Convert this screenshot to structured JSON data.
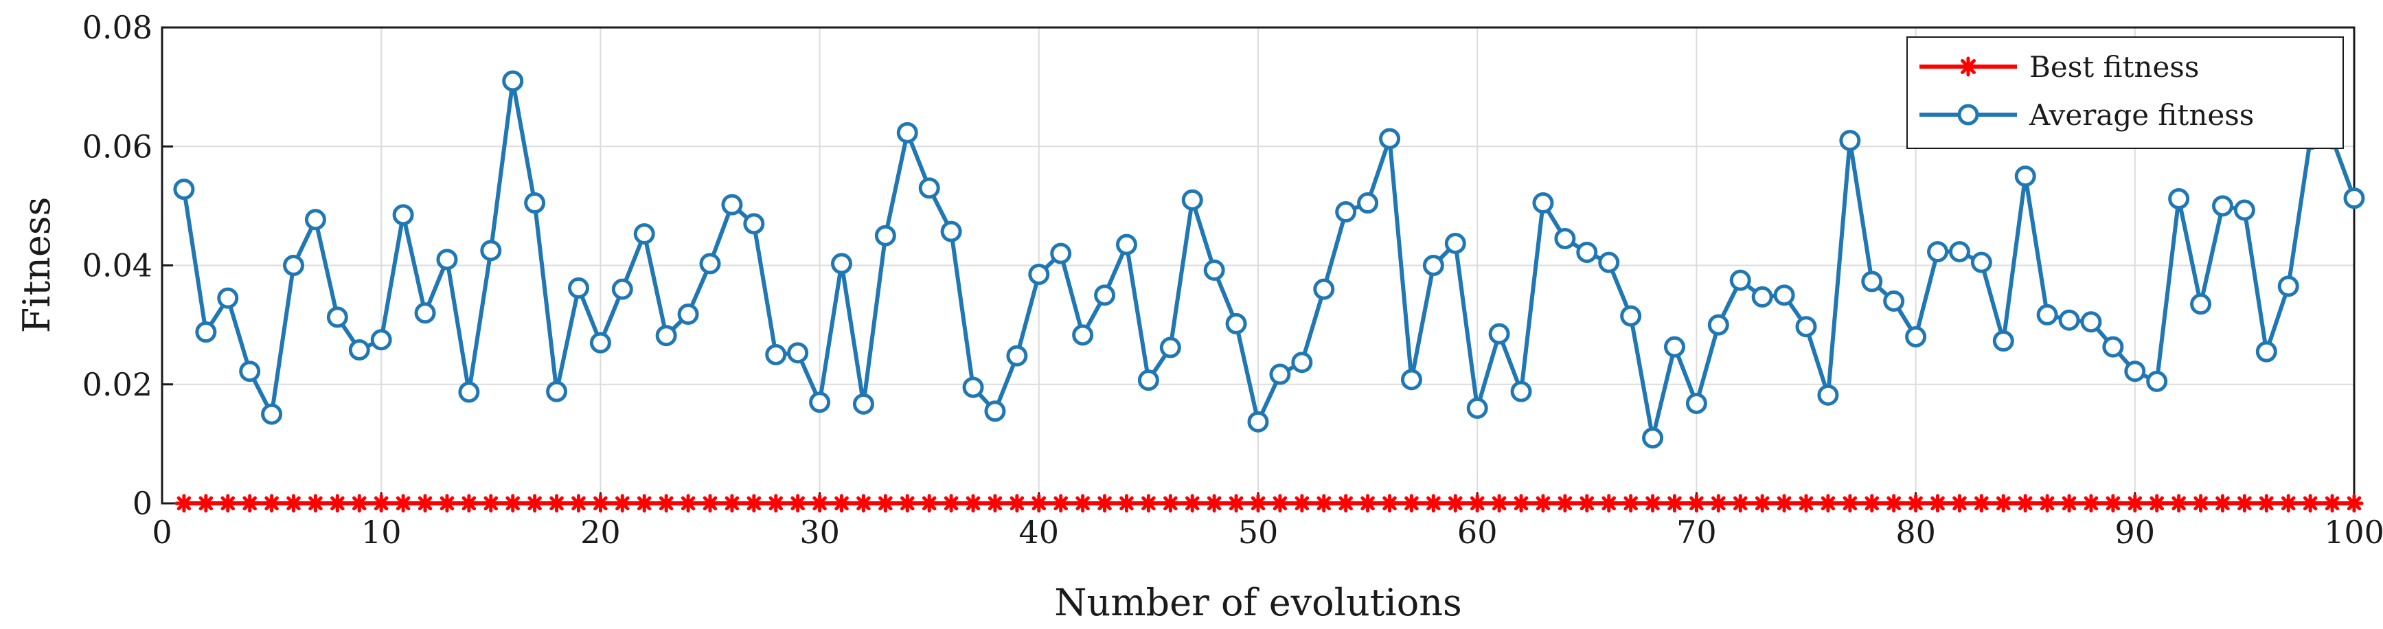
{
  "chart_data": {
    "type": "line",
    "xlabel": "Number of evolutions",
    "ylabel": "Fitness",
    "xlim": [
      0,
      100
    ],
    "ylim": [
      0,
      0.08
    ],
    "x_ticks": [
      0,
      10,
      20,
      30,
      40,
      50,
      60,
      70,
      80,
      90,
      100
    ],
    "y_ticks": [
      0,
      0.02,
      0.04,
      0.06,
      0.08
    ],
    "x_tick_labels": [
      "0",
      "10",
      "20",
      "30",
      "40",
      "50",
      "60",
      "70",
      "80",
      "90",
      "100"
    ],
    "y_tick_labels": [
      "0",
      "0.02",
      "0.04",
      "0.06",
      "0.08"
    ],
    "grid": true,
    "legend_position": "top-right",
    "x": [
      1,
      2,
      3,
      4,
      5,
      6,
      7,
      8,
      9,
      10,
      11,
      12,
      13,
      14,
      15,
      16,
      17,
      18,
      19,
      20,
      21,
      22,
      23,
      24,
      25,
      26,
      27,
      28,
      29,
      30,
      31,
      32,
      33,
      34,
      35,
      36,
      37,
      38,
      39,
      40,
      41,
      42,
      43,
      44,
      45,
      46,
      47,
      48,
      49,
      50,
      51,
      52,
      53,
      54,
      55,
      56,
      57,
      58,
      59,
      60,
      61,
      62,
      63,
      64,
      65,
      66,
      67,
      68,
      69,
      70,
      71,
      72,
      73,
      74,
      75,
      76,
      77,
      78,
      79,
      80,
      81,
      82,
      83,
      84,
      85,
      86,
      87,
      88,
      89,
      90,
      91,
      92,
      93,
      94,
      95,
      96,
      97,
      98,
      99,
      100
    ],
    "series": [
      {
        "name": "Best fitness",
        "color": "#ff0000",
        "marker": "asterisk",
        "values": [
          0,
          0,
          0,
          0,
          0,
          0,
          0,
          0,
          0,
          0,
          0,
          0,
          0,
          0,
          0,
          0,
          0,
          0,
          0,
          0,
          0,
          0,
          0,
          0,
          0,
          0,
          0,
          0,
          0,
          0,
          0,
          0,
          0,
          0,
          0,
          0,
          0,
          0,
          0,
          0,
          0,
          0,
          0,
          0,
          0,
          0,
          0,
          0,
          0,
          0,
          0,
          0,
          0,
          0,
          0,
          0,
          0,
          0,
          0,
          0,
          0,
          0,
          0,
          0,
          0,
          0,
          0,
          0,
          0,
          0,
          0,
          0,
          0,
          0,
          0,
          0,
          0,
          0,
          0,
          0,
          0,
          0,
          0,
          0,
          0,
          0,
          0,
          0,
          0,
          0,
          0,
          0,
          0,
          0,
          0,
          0,
          0,
          0,
          0,
          0
        ]
      },
      {
        "name": "Average fitness",
        "color": "#1f77b4",
        "marker": "circle",
        "values": [
          0.0528,
          0.0288,
          0.0345,
          0.0222,
          0.015,
          0.04,
          0.0477,
          0.0313,
          0.0258,
          0.0275,
          0.0485,
          0.032,
          0.041,
          0.0187,
          0.0425,
          0.071,
          0.0505,
          0.0188,
          0.0362,
          0.027,
          0.036,
          0.0453,
          0.0282,
          0.0318,
          0.0403,
          0.0502,
          0.047,
          0.025,
          0.0253,
          0.017,
          0.0403,
          0.0167,
          0.045,
          0.0623,
          0.053,
          0.0457,
          0.0195,
          0.0155,
          0.0248,
          0.0385,
          0.042,
          0.0283,
          0.035,
          0.0435,
          0.0207,
          0.0262,
          0.051,
          0.0392,
          0.0302,
          0.0137,
          0.0217,
          0.0237,
          0.036,
          0.049,
          0.0505,
          0.0613,
          0.0208,
          0.04,
          0.0437,
          0.016,
          0.0285,
          0.0188,
          0.0505,
          0.0445,
          0.0422,
          0.0405,
          0.0315,
          0.011,
          0.0263,
          0.0168,
          0.03,
          0.0375,
          0.0347,
          0.035,
          0.0297,
          0.0182,
          0.061,
          0.0373,
          0.034,
          0.028,
          0.0423,
          0.0423,
          0.0405,
          0.0273,
          0.055,
          0.0317,
          0.0308,
          0.0305,
          0.0263,
          0.0222,
          0.0205,
          0.0512,
          0.0335,
          0.05,
          0.0493,
          0.0255,
          0.0365,
          0.0612,
          0.0613,
          0.0513
        ]
      }
    ]
  }
}
